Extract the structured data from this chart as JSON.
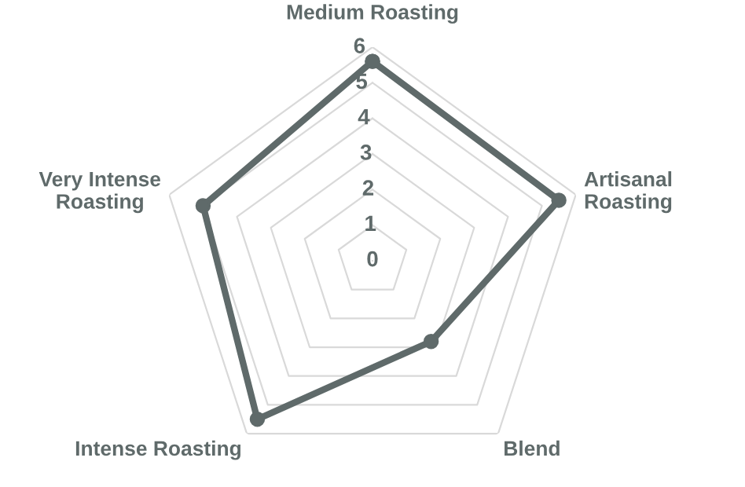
{
  "chart_data": {
    "type": "radar",
    "categories": [
      "Medium Roasting",
      "Artisanal\nRoasting",
      "Blend",
      "Intense Roasting",
      "Very Intense\nRoasting"
    ],
    "series": [
      {
        "color": "#5f6a6a",
        "values": [
          5.6,
          5.5,
          2.8,
          5.5,
          5.0
        ]
      }
    ],
    "ylim": [
      0,
      6
    ],
    "yticks": [
      0,
      1,
      2,
      3,
      4,
      5,
      6
    ],
    "grid": true,
    "marker": "circle",
    "line_style": "solid"
  }
}
